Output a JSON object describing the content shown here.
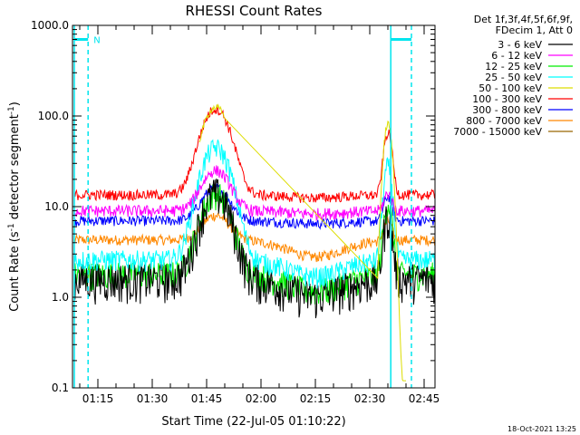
{
  "chart_data": {
    "type": "line",
    "title": "RHESSI Count Rates",
    "xlabel": "Start Time (22-Jul-05 01:10:22)",
    "ylabel_prefix": "Count Rate (s",
    "ylabel_sup": "-1",
    "ylabel_mid": " detector segment",
    "ylabel_sup2": "-1",
    "ylabel_suffix": ")",
    "yscale": "log",
    "ylim": [
      0.1,
      1000
    ],
    "xlim_minutes": [
      68,
      168
    ],
    "yticks": [
      {
        "value": 0.1,
        "label": "0.1"
      },
      {
        "value": 1,
        "label": "1.0"
      },
      {
        "value": 10,
        "label": "10.0"
      },
      {
        "value": 100,
        "label": "100.0"
      },
      {
        "value": 1000,
        "label": "1000.0"
      }
    ],
    "xticks": [
      {
        "minute": 75,
        "label": "01:15"
      },
      {
        "minute": 90,
        "label": "01:30"
      },
      {
        "minute": 105,
        "label": "01:45"
      },
      {
        "minute": 120,
        "label": "02:00"
      },
      {
        "minute": 135,
        "label": "02:15"
      },
      {
        "minute": 150,
        "label": "02:30"
      },
      {
        "minute": 165,
        "label": "02:45"
      }
    ],
    "legend": {
      "header": [
        "Det 1f,3f,4f,5f,6f,9f,",
        "FDecim 1, Att 0"
      ],
      "placement": "top-right"
    },
    "series": [
      {
        "name": "3 - 6 keV",
        "color": "#000000",
        "baseline": 1.6,
        "peak1": 14,
        "peak2": 8,
        "noise": 0.22
      },
      {
        "name": "6 - 12 keV",
        "color": "#ff00ff",
        "baseline": 9.0,
        "peak1": 25,
        "peak2": 14,
        "noise": 0.07
      },
      {
        "name": "12 - 25 keV",
        "color": "#00ee00",
        "baseline": 1.8,
        "peak1": 14,
        "peak2": 11,
        "noise": 0.16
      },
      {
        "name": "25 - 50 keV",
        "color": "#00ffff",
        "baseline": 2.6,
        "peak1": 45,
        "peak2": 28,
        "noise": 0.12
      },
      {
        "name": "50 - 100 keV",
        "color": "#dddd00",
        "baseline": 0,
        "peak1": 125,
        "peak2": 82,
        "noise": 0.04
      },
      {
        "name": "100 - 300 keV",
        "color": "#ff0000",
        "baseline": 13.5,
        "peak1": 120,
        "peak2": 65,
        "noise": 0.06
      },
      {
        "name": "300 - 800 keV",
        "color": "#0000ff",
        "baseline": 7.0,
        "peak1": 16,
        "peak2": 13,
        "noise": 0.06
      },
      {
        "name": "800 - 7000 keV",
        "color": "#ff8800",
        "baseline": 4.3,
        "peak1": 8,
        "peak2": 7,
        "noise": 0.06
      },
      {
        "name": "7000 - 15000 keV",
        "color": "#996600",
        "baseline": 0,
        "peak1": 0,
        "peak2": 0,
        "noise": 0
      }
    ],
    "markers": {
      "solid_vertical_minutes": [
        68.5,
        155.8
      ],
      "dashed_vertical_minutes": [
        72.3,
        161.5
      ],
      "bars": [
        {
          "from_minute": 68.5,
          "to_minute": 72.3,
          "value": 700
        },
        {
          "from_minute": 155.8,
          "to_minute": 161.5,
          "value": 700
        }
      ],
      "bar_label": "N",
      "color": "#00e5ee"
    },
    "timestamp": "18-Oct-2021 13:25"
  }
}
